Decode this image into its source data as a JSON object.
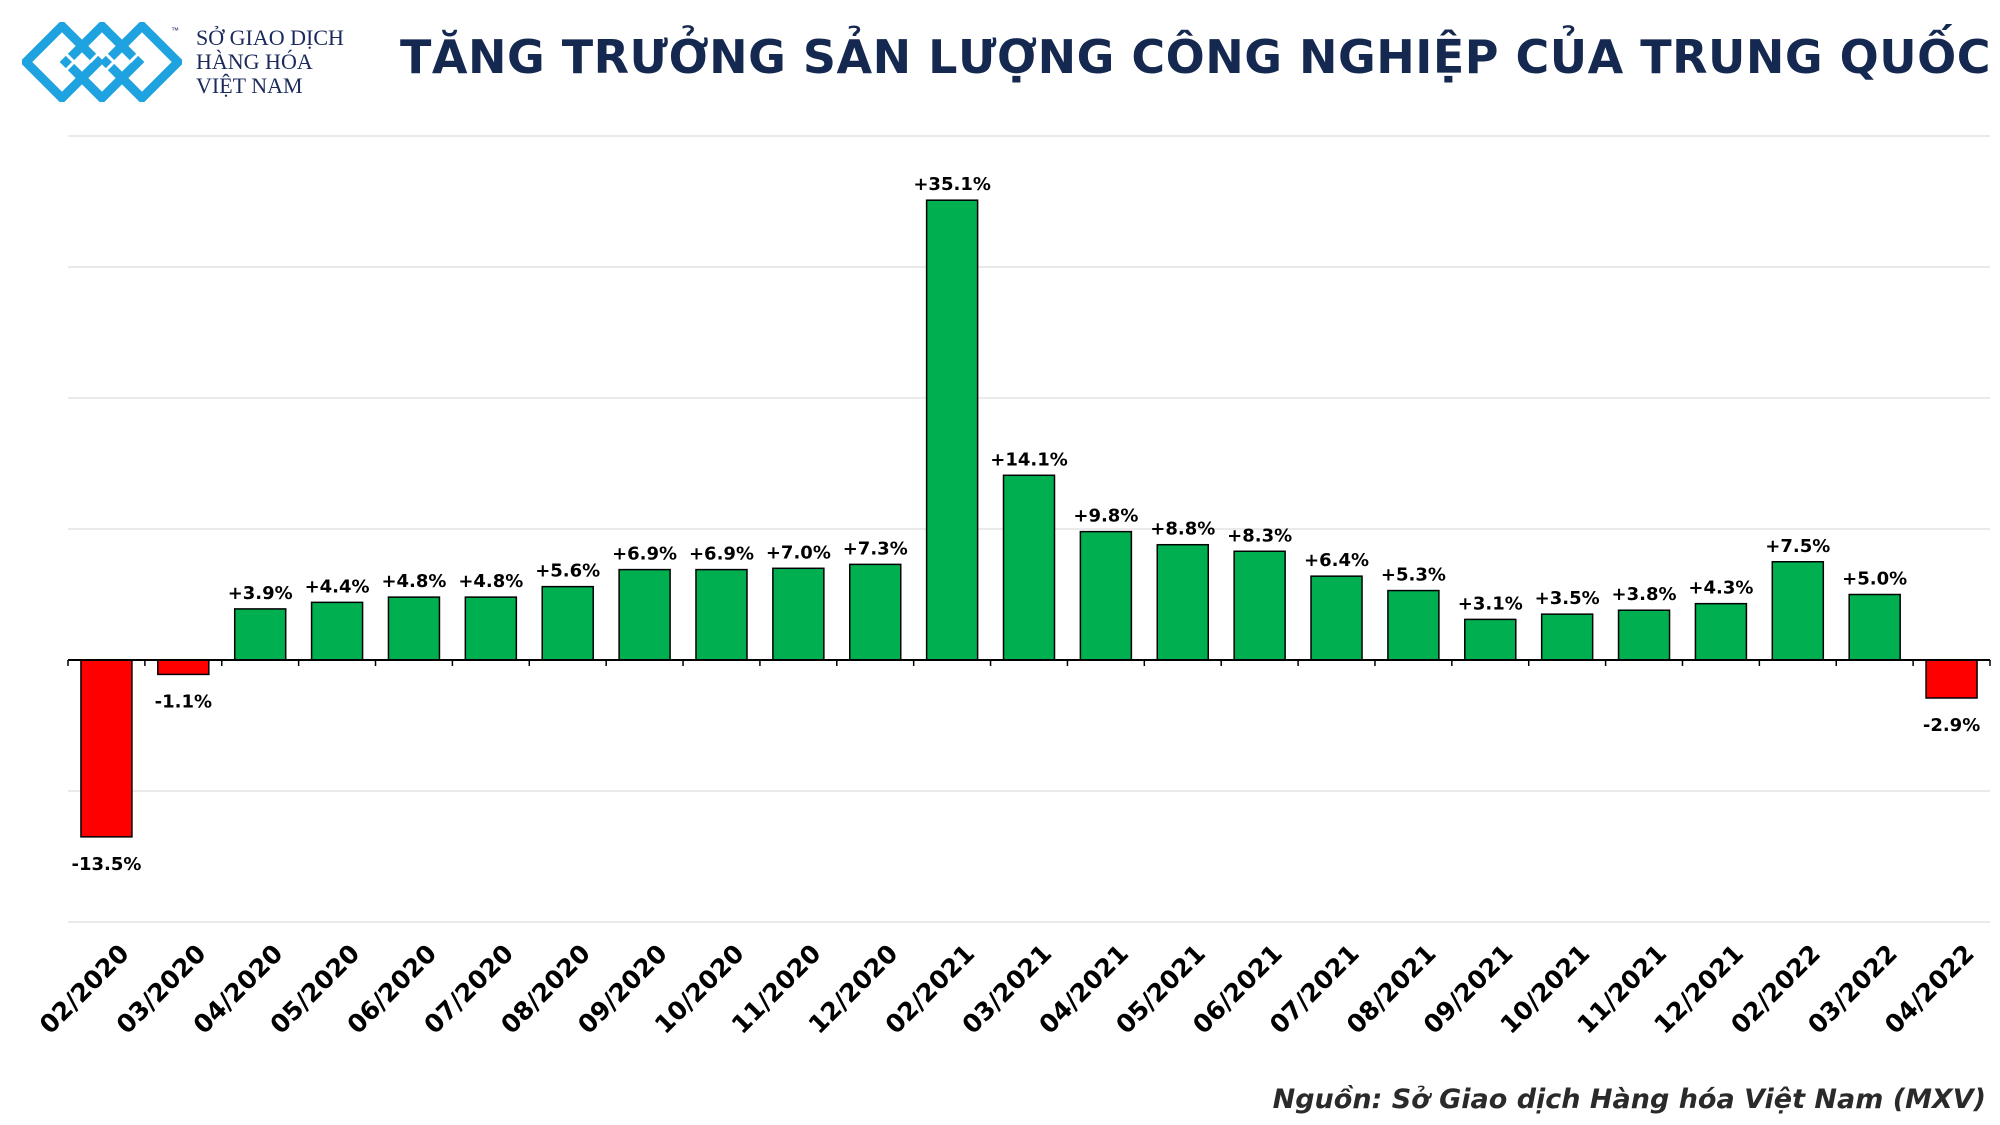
{
  "brand": {
    "name_lines": [
      "SỞ GIAO DỊCH",
      "HÀNG HÓA",
      "VIỆT NAM"
    ],
    "tm": "™",
    "colors": {
      "logo": "#1fa3e0",
      "text": "#1b2a5c"
    }
  },
  "title": "TĂNG TRƯỞNG SẢN LƯỢNG CÔNG NGHIỆP CỦA TRUNG QUỐC",
  "source": "Nguồn: Sở Giao dịch Hàng hóa Việt Nam (MXV)",
  "chart_data": {
    "type": "bar",
    "categories": [
      "02/2020",
      "03/2020",
      "04/2020",
      "05/2020",
      "06/2020",
      "07/2020",
      "08/2020",
      "09/2020",
      "10/2020",
      "11/2020",
      "12/2020",
      "02/2021",
      "03/2021",
      "04/2021",
      "05/2021",
      "06/2021",
      "07/2021",
      "08/2021",
      "09/2021",
      "10/2021",
      "11/2021",
      "12/2021",
      "02/2022",
      "03/2022",
      "04/2022"
    ],
    "values": [
      -13.5,
      -1.1,
      3.9,
      4.4,
      4.8,
      4.8,
      5.6,
      6.9,
      6.9,
      7.0,
      7.3,
      35.1,
      14.1,
      9.8,
      8.8,
      8.3,
      6.4,
      5.3,
      3.1,
      3.5,
      3.8,
      4.3,
      7.5,
      5.0,
      -2.9
    ],
    "labels": [
      "-13.5%",
      "-1.1%",
      "+3.9%",
      "+4.4%",
      "+4.8%",
      "+4.8%",
      "+5.6%",
      "+6.9%",
      "+6.9%",
      "+7.0%",
      "+7.3%",
      "+35.1%",
      "+14.1%",
      "+9.8%",
      "+8.8%",
      "+8.3%",
      "+6.4%",
      "+5.3%",
      "+3.1%",
      "+3.5%",
      "+3.8%",
      "+4.3%",
      "+7.5%",
      "+5.0%",
      "-2.9%"
    ],
    "ylim": [
      -20,
      40
    ],
    "grid": true,
    "colors": {
      "positive": "#00b050",
      "negative": "#ff0000",
      "grid": "#e3e3e3",
      "axis": "#000000"
    }
  }
}
